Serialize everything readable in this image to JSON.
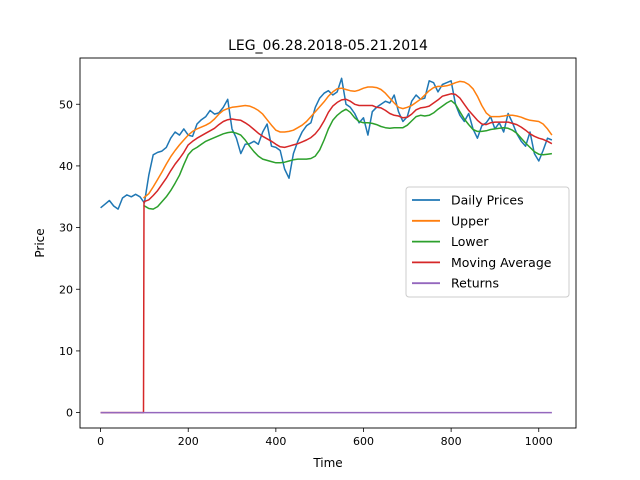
{
  "chart_data": {
    "type": "line",
    "title": "LEG_06.28.2018-05.21.2014",
    "xlabel": "Time",
    "ylabel": "Price",
    "xlim": [
      -47,
      1085
    ],
    "ylim": [
      -2.5,
      57.5
    ],
    "xticks": [
      0,
      200,
      400,
      600,
      800,
      1000
    ],
    "yticks": [
      0,
      10,
      20,
      30,
      40,
      50
    ],
    "grid": false,
    "legend_position": "center-right",
    "series": [
      {
        "name": "Daily Prices",
        "color": "#1f77b4",
        "x": [
          0,
          10,
          20,
          30,
          40,
          50,
          60,
          70,
          80,
          90,
          98,
          100,
          110,
          120,
          130,
          140,
          150,
          160,
          170,
          180,
          190,
          200,
          210,
          220,
          230,
          240,
          250,
          260,
          270,
          280,
          290,
          300,
          310,
          320,
          330,
          340,
          350,
          360,
          370,
          380,
          390,
          400,
          410,
          420,
          430,
          440,
          450,
          460,
          470,
          480,
          490,
          500,
          510,
          520,
          530,
          540,
          550,
          560,
          570,
          580,
          590,
          600,
          610,
          620,
          630,
          640,
          650,
          660,
          670,
          680,
          690,
          700,
          710,
          720,
          730,
          740,
          750,
          760,
          770,
          780,
          790,
          800,
          810,
          820,
          830,
          840,
          850,
          860,
          870,
          880,
          890,
          900,
          910,
          920,
          930,
          940,
          950,
          960,
          970,
          980,
          990,
          1000,
          1010,
          1020,
          1030
        ],
        "values": [
          33.2,
          33.8,
          34.4,
          33.5,
          33.0,
          34.8,
          35.3,
          35.0,
          35.4,
          35.0,
          34.2,
          34.0,
          38.5,
          41.8,
          42.2,
          42.4,
          43.0,
          44.5,
          45.5,
          45.0,
          46.0,
          45.0,
          44.8,
          46.8,
          47.5,
          48.0,
          49.0,
          48.4,
          48.6,
          49.5,
          50.8,
          46.0,
          44.5,
          42.0,
          43.5,
          43.6,
          44.0,
          43.5,
          45.5,
          46.8,
          43.2,
          43.0,
          42.5,
          39.5,
          38.0,
          42.0,
          44.0,
          45.5,
          46.5,
          47.0,
          49.5,
          51.0,
          51.8,
          52.2,
          51.5,
          52.0,
          54.2,
          50.0,
          49.5,
          48.5,
          47.0,
          47.8,
          45.0,
          48.8,
          49.5,
          50.0,
          50.5,
          50.2,
          51.5,
          48.8,
          47.2,
          48.0,
          50.5,
          51.5,
          50.8,
          51.0,
          53.8,
          53.5,
          52.0,
          53.2,
          53.5,
          53.8,
          50.0,
          48.2,
          47.2,
          48.5,
          46.0,
          44.5,
          46.5,
          47.0,
          48.0,
          46.0,
          47.0,
          45.5,
          48.5,
          47.0,
          45.2,
          44.0,
          43.2,
          45.5,
          42.0,
          40.8,
          42.5,
          44.5,
          44.2
        ]
      },
      {
        "name": "Upper",
        "color": "#ff7f0e",
        "x": [
          98,
          110,
          120,
          130,
          140,
          150,
          160,
          170,
          180,
          190,
          200,
          210,
          220,
          230,
          240,
          250,
          260,
          270,
          280,
          290,
          300,
          310,
          320,
          330,
          340,
          350,
          360,
          370,
          380,
          390,
          400,
          410,
          420,
          430,
          440,
          450,
          460,
          470,
          480,
          490,
          500,
          510,
          520,
          530,
          540,
          550,
          560,
          570,
          580,
          590,
          600,
          610,
          620,
          630,
          640,
          650,
          660,
          670,
          680,
          690,
          700,
          710,
          720,
          730,
          740,
          750,
          760,
          770,
          780,
          790,
          800,
          810,
          820,
          830,
          840,
          850,
          860,
          870,
          880,
          890,
          900,
          910,
          920,
          930,
          940,
          950,
          960,
          970,
          980,
          990,
          1000,
          1010,
          1020,
          1030
        ],
        "values": [
          34.8,
          35.5,
          36.6,
          37.8,
          39.0,
          40.3,
          41.5,
          42.5,
          43.4,
          44.2,
          45.0,
          45.6,
          46.0,
          46.3,
          46.6,
          47.0,
          47.6,
          48.4,
          49.0,
          49.3,
          49.5,
          49.6,
          49.7,
          49.8,
          49.7,
          49.4,
          49.0,
          48.4,
          47.5,
          46.6,
          45.8,
          45.5,
          45.5,
          45.6,
          45.8,
          46.2,
          46.6,
          47.2,
          48.0,
          48.8,
          49.6,
          50.4,
          51.3,
          52.0,
          52.5,
          52.6,
          52.4,
          52.2,
          52.1,
          52.3,
          52.6,
          52.8,
          52.8,
          52.7,
          52.4,
          51.8,
          51.0,
          50.2,
          49.5,
          49.3,
          49.5,
          49.8,
          50.3,
          50.8,
          51.5,
          52.2,
          52.7,
          52.9,
          52.9,
          53.0,
          53.2,
          53.5,
          53.7,
          53.6,
          53.2,
          52.5,
          51.3,
          49.8,
          48.6,
          48.0,
          48.0,
          48.0,
          48.1,
          48.2,
          48.2,
          48.1,
          47.9,
          47.6,
          47.4,
          47.3,
          47.2,
          46.8,
          46.0,
          45.0
        ]
      },
      {
        "name": "Lower",
        "color": "#2ca02c",
        "x": [
          98,
          105,
          110,
          120,
          130,
          140,
          150,
          160,
          170,
          180,
          190,
          200,
          210,
          220,
          230,
          240,
          250,
          260,
          270,
          280,
          290,
          300,
          310,
          320,
          330,
          340,
          350,
          360,
          370,
          380,
          390,
          400,
          410,
          420,
          430,
          440,
          450,
          460,
          470,
          480,
          490,
          500,
          510,
          520,
          530,
          540,
          550,
          560,
          570,
          580,
          590,
          600,
          610,
          620,
          630,
          640,
          650,
          660,
          670,
          680,
          690,
          700,
          710,
          720,
          730,
          740,
          750,
          760,
          770,
          780,
          790,
          800,
          810,
          820,
          830,
          840,
          850,
          860,
          870,
          880,
          890,
          900,
          910,
          920,
          930,
          940,
          950,
          960,
          970,
          980,
          990,
          1000,
          1010,
          1020,
          1030
        ],
        "values": [
          33.6,
          33.3,
          33.1,
          33.0,
          33.4,
          34.2,
          35.0,
          36.0,
          37.2,
          38.5,
          40.2,
          41.8,
          42.6,
          43.0,
          43.5,
          44.0,
          44.3,
          44.6,
          44.9,
          45.2,
          45.4,
          45.5,
          45.3,
          45.0,
          44.2,
          43.2,
          42.3,
          41.6,
          41.1,
          40.9,
          40.7,
          40.5,
          40.5,
          40.6,
          40.8,
          41.0,
          41.1,
          41.1,
          41.1,
          41.2,
          41.6,
          42.6,
          44.2,
          46.0,
          47.4,
          48.2,
          48.8,
          49.2,
          48.7,
          47.8,
          47.2,
          47.0,
          47.0,
          46.9,
          46.7,
          46.4,
          46.2,
          46.1,
          46.2,
          46.2,
          46.2,
          46.6,
          47.3,
          48.0,
          48.2,
          48.1,
          48.2,
          48.6,
          49.2,
          49.7,
          50.2,
          50.6,
          50.0,
          48.8,
          47.6,
          46.7,
          45.9,
          45.6,
          45.6,
          45.7,
          45.9,
          46.0,
          46.1,
          46.2,
          46.1,
          45.8,
          45.3,
          44.5,
          43.7,
          43.0,
          42.3,
          41.9,
          41.8,
          41.9,
          42.0
        ]
      },
      {
        "name": "Moving Average",
        "color": "#d62728",
        "x": [
          0,
          96,
          98,
          99,
          110,
          120,
          130,
          140,
          150,
          160,
          170,
          180,
          190,
          200,
          210,
          220,
          230,
          240,
          250,
          260,
          270,
          280,
          290,
          300,
          310,
          320,
          330,
          340,
          350,
          360,
          370,
          380,
          390,
          400,
          410,
          420,
          430,
          440,
          450,
          460,
          470,
          480,
          490,
          500,
          510,
          520,
          530,
          540,
          550,
          560,
          570,
          580,
          590,
          600,
          610,
          620,
          630,
          640,
          650,
          660,
          670,
          680,
          690,
          700,
          710,
          720,
          730,
          740,
          750,
          760,
          770,
          780,
          790,
          800,
          810,
          820,
          830,
          840,
          850,
          860,
          870,
          880,
          890,
          900,
          910,
          920,
          930,
          940,
          950,
          960,
          970,
          980,
          990,
          1000,
          1010,
          1020,
          1030
        ],
        "values": [
          0,
          0,
          0,
          34.2,
          34.5,
          35.2,
          36.0,
          37.0,
          38.0,
          39.2,
          40.3,
          41.2,
          42.2,
          43.4,
          44.0,
          44.5,
          44.9,
          45.3,
          45.7,
          46.1,
          46.7,
          47.2,
          47.5,
          47.6,
          47.5,
          47.4,
          47.0,
          46.5,
          45.9,
          45.3,
          44.8,
          44.4,
          44.0,
          43.5,
          43.1,
          43.0,
          43.2,
          43.4,
          43.6,
          43.9,
          44.2,
          44.6,
          45.2,
          46.1,
          47.3,
          48.7,
          49.7,
          50.3,
          50.7,
          50.8,
          50.5,
          50.0,
          49.8,
          49.8,
          49.8,
          49.8,
          49.5,
          49.4,
          49.0,
          48.5,
          48.2,
          48.1,
          47.8,
          47.9,
          48.4,
          49.1,
          49.4,
          49.5,
          49.7,
          50.2,
          50.7,
          51.3,
          51.5,
          51.7,
          51.6,
          51.0,
          50.0,
          49.0,
          48.2,
          47.4,
          46.8,
          46.7,
          47.0,
          47.1,
          47.1,
          47.1,
          47.1,
          46.9,
          46.7,
          46.3,
          45.8,
          45.2,
          44.8,
          44.5,
          44.3,
          44.0,
          43.6
        ]
      },
      {
        "name": "Returns",
        "color": "#9467bd",
        "x": [
          0,
          200,
          400,
          600,
          800,
          1000,
          1030
        ],
        "values": [
          0,
          0,
          0,
          0,
          0,
          0,
          0
        ]
      }
    ]
  }
}
